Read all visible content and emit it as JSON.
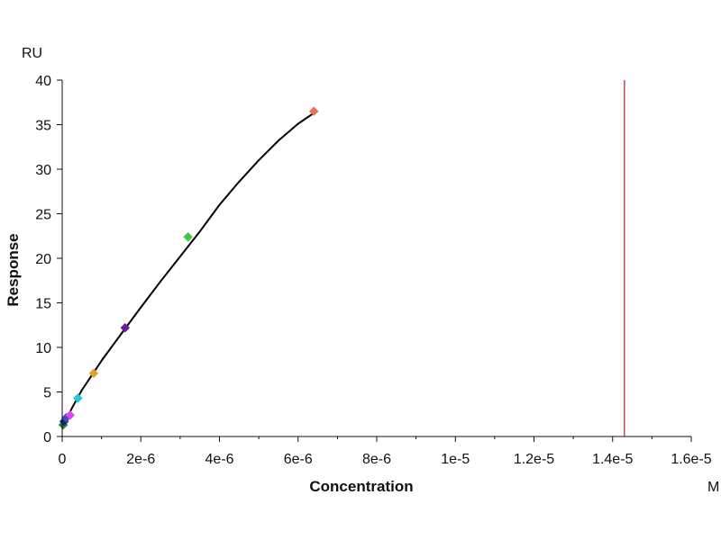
{
  "chart_data": {
    "type": "scatter",
    "title": "",
    "xlabel": "Concentration",
    "ylabel": "Response",
    "x_unit": "M",
    "y_unit": "RU",
    "xlim": [
      0,
      1.6e-05
    ],
    "ylim": [
      0,
      40
    ],
    "grid": false,
    "x_ticks": [
      0,
      2e-06,
      4e-06,
      6e-06,
      8e-06,
      1e-05,
      1.2e-05,
      1.4e-05,
      1.6e-05
    ],
    "x_tick_labels": [
      "0",
      "2e-6",
      "4e-6",
      "6e-6",
      "8e-6",
      "1e-5",
      "1.2e-5",
      "1.4e-5",
      "1.6e-5"
    ],
    "y_ticks": [
      0,
      5,
      10,
      15,
      20,
      25,
      30,
      35,
      40
    ],
    "y_tick_labels": [
      "0",
      "5",
      "10",
      "15",
      "20",
      "25",
      "30",
      "35",
      "40"
    ],
    "points": [
      {
        "x": 2.5e-08,
        "y": 1.3,
        "color": "#2e7d32"
      },
      {
        "x": 5e-08,
        "y": 1.7,
        "color": "#1a237e"
      },
      {
        "x": 1e-07,
        "y": 2.1,
        "color": "#3f51b5"
      },
      {
        "x": 2e-07,
        "y": 2.4,
        "color": "#e040fb"
      },
      {
        "x": 4e-07,
        "y": 4.3,
        "color": "#26c6da"
      },
      {
        "x": 8e-07,
        "y": 7.1,
        "color": "#e0a030"
      },
      {
        "x": 1.6e-06,
        "y": 12.2,
        "color": "#6a1b9a"
      },
      {
        "x": 3.2e-06,
        "y": 22.4,
        "color": "#43c443"
      },
      {
        "x": 6.4e-06,
        "y": 36.5,
        "color": "#e8735a"
      }
    ],
    "fit_curve": {
      "color": "#000000",
      "x": [
        0,
        2.5e-07,
        5e-07,
        1e-06,
        1.5e-06,
        2e-06,
        2.5e-06,
        3e-06,
        3.5e-06,
        4e-06,
        4.5e-06,
        5e-06,
        5.5e-06,
        6e-06,
        6.4e-06
      ],
      "y": [
        1.0,
        3.2,
        5.2,
        8.5,
        11.5,
        14.5,
        17.4,
        20.2,
        23.0,
        26.0,
        28.6,
        31.0,
        33.2,
        35.1,
        36.3
      ]
    },
    "vertical_line": {
      "x": 1.43e-05,
      "color": "#b22222"
    }
  }
}
